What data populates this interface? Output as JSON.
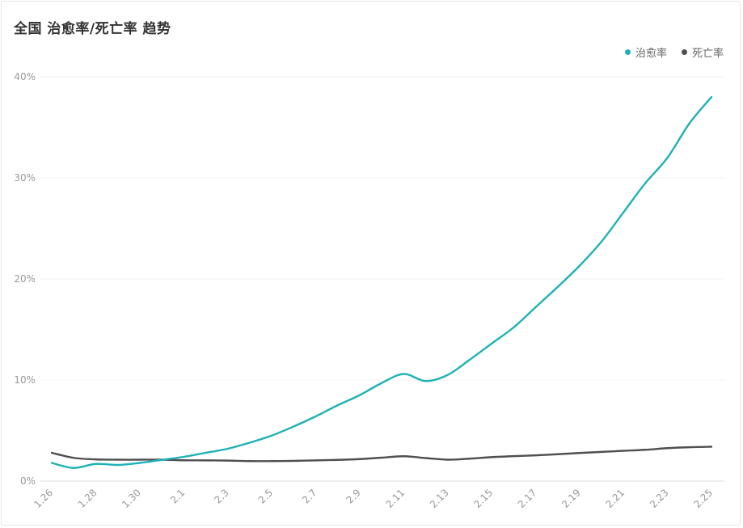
{
  "chart_data": {
    "type": "line",
    "title": "全国 治愈率/死亡率 趋势",
    "x": [
      "1.26",
      "1.27",
      "1.28",
      "1.29",
      "1.30",
      "1.31",
      "2.1",
      "2.2",
      "2.3",
      "2.4",
      "2.5",
      "2.6",
      "2.7",
      "2.8",
      "2.9",
      "2.10",
      "2.11",
      "2.12",
      "2.13",
      "2.14",
      "2.15",
      "2.16",
      "2.17",
      "2.18",
      "2.19",
      "2.20",
      "2.21",
      "2.22",
      "2.23",
      "2.24",
      "2.25"
    ],
    "x_tick_labels": [
      "1.26",
      "1.28",
      "1.30",
      "2.1",
      "2.3",
      "2.5",
      "2.7",
      "2.9",
      "2.11",
      "2.13",
      "2.15",
      "2.17",
      "2.19",
      "2.21",
      "2.23",
      "2.25"
    ],
    "y_ticks": [
      "0%",
      "10%",
      "20%",
      "30%",
      "40%"
    ],
    "ylim": [
      0,
      40
    ],
    "grid": true,
    "legend_position": "top-right",
    "series": [
      {
        "name": "治愈率",
        "color": "#1fb1b5",
        "values": [
          1.8,
          1.3,
          1.7,
          1.6,
          1.8,
          2.1,
          2.4,
          2.8,
          3.2,
          3.8,
          4.5,
          5.4,
          6.4,
          7.5,
          8.5,
          9.7,
          10.6,
          9.9,
          10.5,
          12.0,
          13.6,
          15.2,
          17.2,
          19.2,
          21.3,
          23.7,
          26.6,
          29.5,
          32.0,
          35.4,
          38.0
        ]
      },
      {
        "name": "死亡率",
        "color": "#4f4f52",
        "values": [
          2.8,
          2.3,
          2.15,
          2.12,
          2.12,
          2.12,
          2.06,
          2.05,
          2.03,
          1.98,
          1.98,
          2.0,
          2.05,
          2.1,
          2.18,
          2.32,
          2.46,
          2.28,
          2.12,
          2.22,
          2.37,
          2.47,
          2.55,
          2.66,
          2.78,
          2.89,
          3.0,
          3.1,
          3.26,
          3.35,
          3.4
        ]
      }
    ]
  }
}
